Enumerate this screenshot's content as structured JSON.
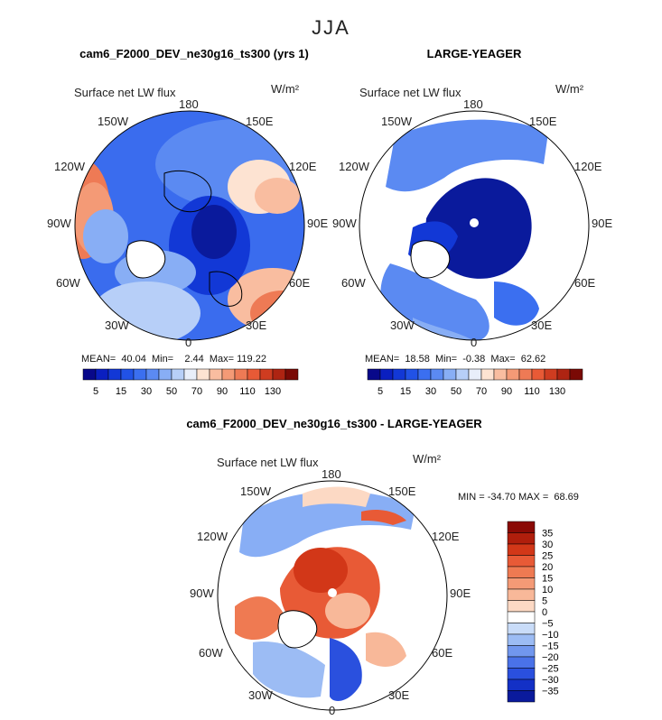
{
  "season": "JJA",
  "panels": [
    {
      "title": "cam6_F2000_DEV_ne30g16_ts300 (yrs 1)",
      "field": "Surface net LW flux",
      "units": "W/m²",
      "stats": "MEAN=  40.04  Min=    2.44  Max= 119.22",
      "lon_labels": {
        "n180": "180",
        "w150": "150W",
        "e150": "150E",
        "w120": "120W",
        "e120": "120E",
        "w90": "90W",
        "e90": "90E",
        "w60": "60W",
        "e60": "60E",
        "w30": "30W",
        "e30": "30E",
        "n0": "0"
      }
    },
    {
      "title": "LARGE-YEAGER",
      "field": "Surface net LW flux",
      "units": "W/m²",
      "stats": "MEAN=  18.58  Min=  -0.38  Max=  62.62",
      "lon_labels": {
        "n180": "180",
        "w150": "150W",
        "e150": "150E",
        "w120": "120W",
        "e120": "120E",
        "w90": "90W",
        "e90": "90E",
        "w60": "60W",
        "e60": "60E",
        "w30": "30W",
        "e30": "30E",
        "n0": "0"
      }
    },
    {
      "title": "cam6_F2000_DEV_ne30g16_ts300 - LARGE-YEAGER",
      "field": "Surface net LW flux",
      "units": "W/m²",
      "stats": "MIN = -34.70 MAX =  68.69",
      "lon_labels": {
        "n180": "180",
        "w150": "150W",
        "e150": "150E",
        "w120": "120W",
        "e120": "120E",
        "w90": "90W",
        "e90": "90E",
        "w60": "60W",
        "e60": "60E",
        "w30": "30W",
        "e30": "30E",
        "n0": "0"
      }
    }
  ],
  "chart_data": [
    {
      "type": "heatmap",
      "projection": "north-polar-stereographic",
      "title": "cam6_F2000_DEV_ne30g16_ts300 (yrs 1)",
      "colorbar": {
        "levels": [
          5,
          10,
          15,
          20,
          30,
          40,
          50,
          60,
          70,
          80,
          90,
          100,
          110,
          120,
          130
        ],
        "tick_labels": [
          "5",
          "15",
          "30",
          "50",
          "70",
          "90",
          "110",
          "130"
        ],
        "colors": [
          "#08088a",
          "#0a1fc0",
          "#1238d6",
          "#2152e6",
          "#3b6ff0",
          "#5b8af2",
          "#88aef5",
          "#b7cff8",
          "#e8eefa",
          "#fde3d2",
          "#f9bda0",
          "#f49a76",
          "#ee7a55",
          "#e85a36",
          "#cf3c20",
          "#ae2412",
          "#7a0a05"
        ]
      },
      "mean": 40.04,
      "min": 2.44,
      "max": 119.22
    },
    {
      "type": "heatmap",
      "projection": "north-polar-stereographic",
      "title": "LARGE-YEAGER",
      "colorbar": {
        "levels": [
          5,
          10,
          15,
          20,
          30,
          40,
          50,
          60,
          70,
          80,
          90,
          100,
          110,
          120,
          130
        ],
        "tick_labels": [
          "5",
          "15",
          "30",
          "50",
          "70",
          "90",
          "110",
          "130"
        ],
        "colors": [
          "#08088a",
          "#0a1fc0",
          "#1238d6",
          "#2152e6",
          "#3b6ff0",
          "#5b8af2",
          "#88aef5",
          "#b7cff8",
          "#e8eefa",
          "#fde3d2",
          "#f9bda0",
          "#f49a76",
          "#ee7a55",
          "#e85a36",
          "#cf3c20",
          "#ae2412",
          "#7a0a05"
        ]
      },
      "mean": 18.58,
      "min": -0.38,
      "max": 62.62
    },
    {
      "type": "heatmap",
      "projection": "north-polar-stereographic",
      "title": "cam6_F2000_DEV_ne30g16_ts300 - LARGE-YEAGER",
      "colorbar": {
        "levels": [
          35,
          30,
          25,
          20,
          15,
          10,
          5,
          0,
          -5,
          -10,
          -15,
          -20,
          -25,
          -30,
          -35
        ],
        "tick_labels": [
          "35",
          "30",
          "25",
          "20",
          "15",
          "10",
          "5",
          "0",
          "−5",
          "−10",
          "−15",
          "−20",
          "−25",
          "−30",
          "−35"
        ],
        "colors": [
          "#8a0a05",
          "#b01e0c",
          "#d23718",
          "#e85a36",
          "#ef7a52",
          "#f49a76",
          "#f8b899",
          "#fcd9c4",
          "#ffffff",
          "#c9dcf8",
          "#9cbcf4",
          "#7197ee",
          "#4a72e8",
          "#2a50de",
          "#1330c6",
          "#0a1a9c"
        ]
      },
      "min": -34.7,
      "max": 68.69
    }
  ]
}
